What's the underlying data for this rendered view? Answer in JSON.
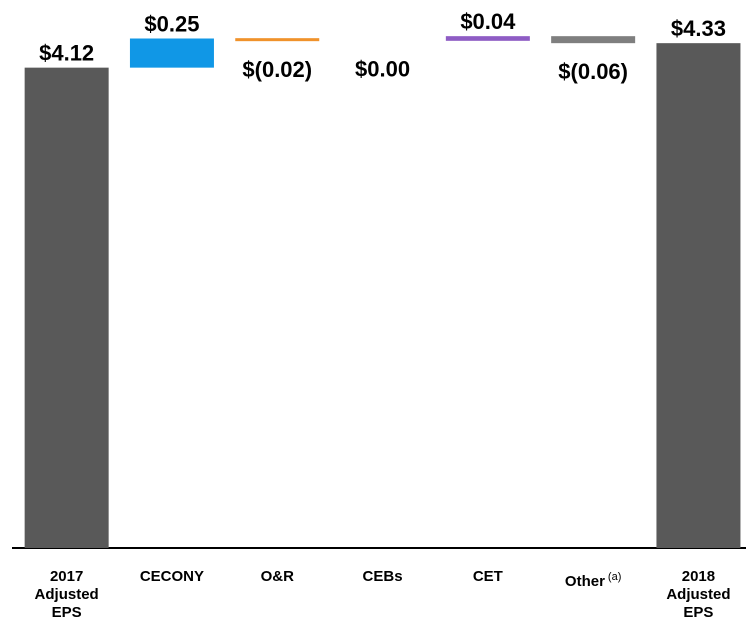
{
  "chart_data": {
    "type": "waterfall",
    "categories": [
      "2017 Adjusted EPS",
      "CECONY",
      "O&R",
      "CEBs",
      "CET",
      "Other",
      "2018 Adjusted EPS"
    ],
    "values": [
      4.12,
      0.25,
      -0.02,
      0.0,
      0.04,
      -0.06,
      4.33
    ],
    "value_labels": [
      "$4.12",
      "$0.25",
      "$(0.02)",
      "$0.00",
      "$0.04",
      "$(0.06)",
      "$4.33"
    ],
    "totals": [
      true,
      false,
      false,
      false,
      false,
      false,
      true
    ],
    "colors": [
      "#595959",
      "#1097e6",
      "#f0922b",
      "#9e9e9e",
      "#8e5cc4",
      "#7f7f7f",
      "#595959"
    ],
    "annotation": "(a)",
    "ylim": [
      0,
      4.4
    ]
  }
}
